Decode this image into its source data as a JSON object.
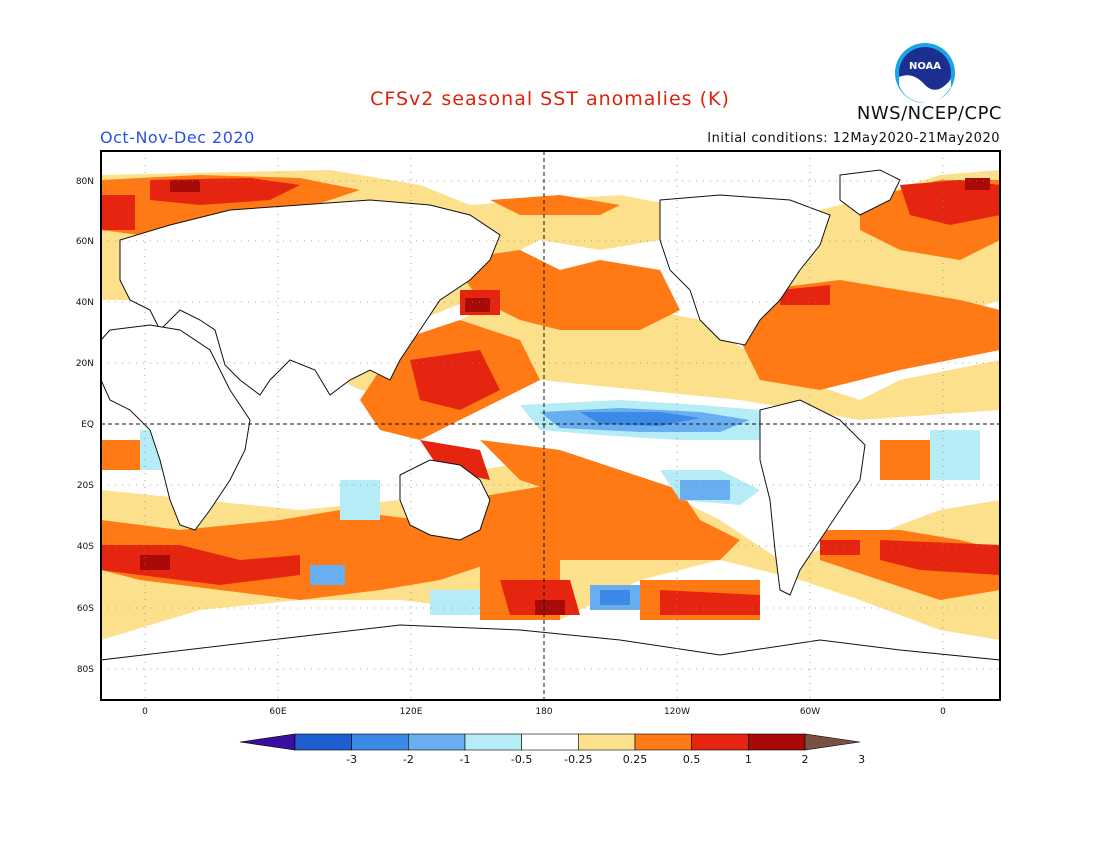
{
  "title": "CFSv2 seasonal SST anomalies (K)",
  "season": "Oct-Nov-Dec 2020",
  "initial_conditions": "Initial conditions: 12May2020-21May2020",
  "organization": "NWS/NCEP/CPC",
  "logo_text": "NOAA",
  "lat_labels": [
    "80N",
    "60N",
    "40N",
    "20N",
    "EQ",
    "20S",
    "40S",
    "60S",
    "80S"
  ],
  "lon_labels": [
    "0",
    "60E",
    "120E",
    "180",
    "120W",
    "60W",
    "0"
  ],
  "colorbar": {
    "labels": [
      "-3",
      "-2",
      "-1",
      "-0.5",
      "-0.25",
      "0.25",
      "0.5",
      "1",
      "2",
      "3"
    ],
    "colors": [
      "#3a0fa0",
      "#1f5ed0",
      "#3b8ae8",
      "#6aaef2",
      "#b5ecf5",
      "#ffffff",
      "#fce08c",
      "#ff7a14",
      "#e52510",
      "#a80a08",
      "#7a5040"
    ]
  },
  "colors": {
    "title": "#e0200c",
    "season": "#2b50e0",
    "land": "#ffffff",
    "coast": "#111111"
  }
}
